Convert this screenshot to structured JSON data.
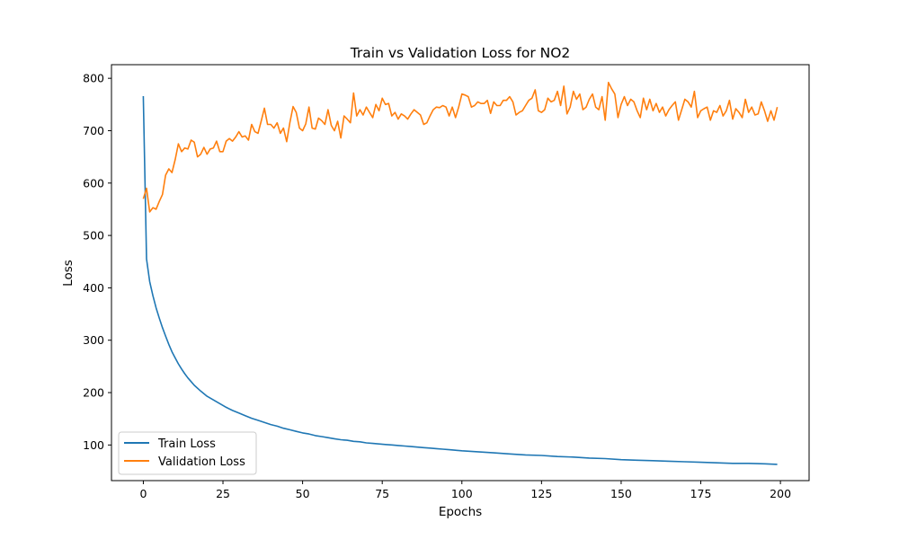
{
  "chart_data": {
    "type": "line",
    "title": "Train vs Validation Loss for NO2",
    "xlabel": "Epochs",
    "ylabel": "Loss",
    "xlim": [
      -10,
      209
    ],
    "ylim": [
      32,
      826
    ],
    "xticks": [
      0,
      25,
      50,
      75,
      100,
      125,
      150,
      175,
      200
    ],
    "yticks": [
      100,
      200,
      300,
      400,
      500,
      600,
      700,
      800
    ],
    "grid": false,
    "legend_position": "lower-left",
    "series": [
      {
        "name": "Train Loss",
        "color": "#1f77b4",
        "x": [
          0,
          1,
          2,
          3,
          4,
          5,
          6,
          7,
          8,
          9,
          10,
          11,
          12,
          13,
          14,
          15,
          16,
          18,
          20,
          22,
          24,
          26,
          28,
          30,
          32,
          34,
          36,
          38,
          40,
          42,
          44,
          46,
          48,
          50,
          52,
          54,
          56,
          58,
          60,
          62,
          64,
          66,
          68,
          70,
          72,
          74,
          76,
          78,
          80,
          82,
          84,
          86,
          88,
          90,
          92,
          94,
          96,
          98,
          100,
          105,
          110,
          115,
          120,
          125,
          130,
          135,
          140,
          145,
          150,
          155,
          160,
          165,
          170,
          175,
          180,
          185,
          190,
          195,
          199
        ],
        "y": [
          766,
          455,
          412,
          385,
          362,
          342,
          324,
          308,
          292,
          278,
          266,
          255,
          245,
          236,
          228,
          221,
          214,
          203,
          193,
          186,
          179,
          172,
          166,
          161,
          156,
          151,
          147,
          143,
          139,
          136,
          132,
          129,
          126,
          123,
          121,
          118,
          116,
          114,
          112,
          110,
          109,
          107,
          106,
          104,
          103,
          102,
          101,
          100,
          99,
          98,
          97,
          96,
          95,
          94,
          93,
          92,
          91,
          90,
          89,
          87,
          85,
          83,
          81,
          80,
          78,
          77,
          75,
          74,
          72,
          71,
          70,
          69,
          68,
          67,
          66,
          65,
          65,
          64,
          63
        ]
      },
      {
        "name": "Validation Loss",
        "color": "#ff7f0e",
        "x": [
          0,
          1,
          2,
          3,
          4,
          5,
          6,
          7,
          8,
          9,
          10,
          11,
          12,
          13,
          14,
          15,
          16,
          17,
          18,
          19,
          20,
          21,
          22,
          23,
          24,
          25,
          26,
          27,
          28,
          29,
          30,
          31,
          32,
          33,
          34,
          35,
          36,
          37,
          38,
          39,
          40,
          41,
          42,
          43,
          44,
          45,
          46,
          47,
          48,
          49,
          50,
          51,
          52,
          53,
          54,
          55,
          56,
          57,
          58,
          59,
          60,
          61,
          62,
          63,
          64,
          65,
          66,
          67,
          68,
          69,
          70,
          71,
          72,
          73,
          74,
          75,
          76,
          77,
          78,
          79,
          80,
          81,
          82,
          83,
          84,
          85,
          86,
          87,
          88,
          89,
          90,
          91,
          92,
          93,
          94,
          95,
          96,
          97,
          98,
          99,
          100,
          101,
          102,
          103,
          104,
          105,
          106,
          107,
          108,
          109,
          110,
          111,
          112,
          113,
          114,
          115,
          116,
          117,
          118,
          119,
          120,
          121,
          122,
          123,
          124,
          125,
          126,
          127,
          128,
          129,
          130,
          131,
          132,
          133,
          134,
          135,
          136,
          137,
          138,
          139,
          140,
          141,
          142,
          143,
          144,
          145,
          146,
          147,
          148,
          149,
          150,
          151,
          152,
          153,
          154,
          155,
          156,
          157,
          158,
          159,
          160,
          161,
          162,
          163,
          164,
          165,
          166,
          167,
          168,
          169,
          170,
          171,
          172,
          173,
          174,
          175,
          176,
          177,
          178,
          179,
          180,
          181,
          182,
          183,
          184,
          185,
          186,
          187,
          188,
          189,
          190,
          191,
          192,
          193,
          194,
          195,
          196,
          197,
          198,
          199
        ],
        "y": [
          570,
          590,
          545,
          553,
          550,
          565,
          578,
          615,
          627,
          620,
          645,
          675,
          660,
          667,
          665,
          682,
          678,
          650,
          655,
          668,
          655,
          665,
          667,
          680,
          660,
          660,
          680,
          685,
          680,
          688,
          698,
          688,
          690,
          682,
          712,
          698,
          695,
          718,
          743,
          712,
          712,
          705,
          715,
          695,
          705,
          679,
          715,
          746,
          735,
          705,
          700,
          713,
          745,
          705,
          703,
          724,
          719,
          712,
          740,
          710,
          700,
          718,
          686,
          728,
          722,
          715,
          772,
          728,
          740,
          730,
          745,
          735,
          725,
          750,
          738,
          762,
          750,
          752,
          728,
          735,
          722,
          732,
          728,
          722,
          732,
          740,
          735,
          730,
          712,
          715,
          728,
          740,
          745,
          744,
          748,
          745,
          728,
          745,
          725,
          745,
          770,
          768,
          765,
          745,
          748,
          755,
          752,
          752,
          758,
          733,
          755,
          748,
          748,
          758,
          758,
          765,
          755,
          730,
          735,
          738,
          748,
          758,
          762,
          778,
          738,
          735,
          740,
          762,
          755,
          758,
          775,
          748,
          785,
          732,
          745,
          775,
          760,
          770,
          740,
          745,
          760,
          770,
          745,
          740,
          765,
          720,
          792,
          780,
          770,
          725,
          750,
          765,
          748,
          760,
          755,
          738,
          725,
          762,
          740,
          760,
          738,
          752,
          735,
          745,
          728,
          740,
          748,
          755,
          720,
          740,
          760,
          755,
          745,
          775,
          725,
          738,
          742,
          745,
          720,
          738,
          735,
          748,
          728,
          738,
          758,
          722,
          742,
          735,
          725,
          760,
          735,
          745,
          730,
          732,
          755,
          738,
          718,
          738,
          720,
          745
        ]
      }
    ]
  }
}
